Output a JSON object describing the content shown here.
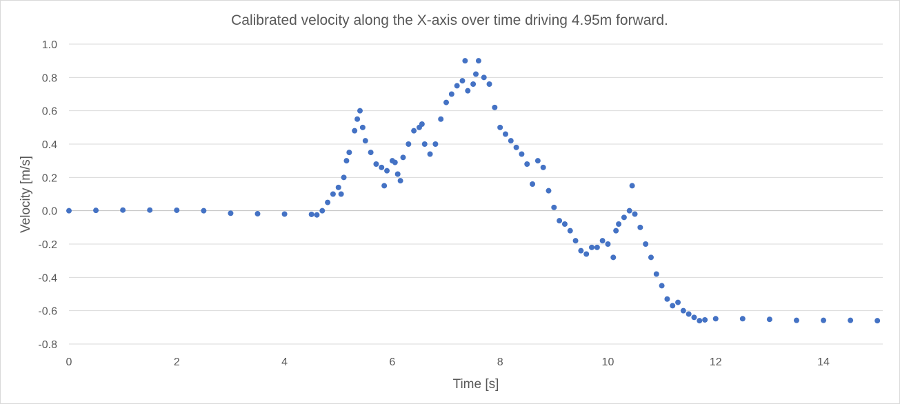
{
  "chart_data": {
    "type": "scatter",
    "title": "Calibrated velocity along the X-axis over time driving 4.95m forward.",
    "xlabel": "Time [s]",
    "ylabel": "Velocity  [m/s]",
    "xlim": [
      0,
      15.1
    ],
    "ylim": [
      -0.8,
      1.0
    ],
    "x_ticks": [
      "0",
      "2",
      "4",
      "6",
      "8",
      "10",
      "12",
      "14"
    ],
    "y_ticks": [
      "1.0",
      "0.8",
      "0.6",
      "0.4",
      "0.2",
      "0.0",
      "-0.2",
      "-0.4",
      "-0.6",
      "-0.8"
    ],
    "grid": "horizontal",
    "legend": "none",
    "marker_color": "#4472c4",
    "series": [
      {
        "points": [
          [
            0,
            0.0
          ],
          [
            0.5,
            0.002
          ],
          [
            1.0,
            0.004
          ],
          [
            1.5,
            0.004
          ],
          [
            2.0,
            0.003
          ],
          [
            2.5,
            0.0
          ],
          [
            3.0,
            -0.015
          ],
          [
            3.5,
            -0.018
          ],
          [
            4.0,
            -0.02
          ],
          [
            4.5,
            -0.022
          ],
          [
            4.6,
            -0.025
          ],
          [
            4.7,
            0.0
          ],
          [
            4.8,
            0.05
          ],
          [
            4.9,
            0.1
          ],
          [
            5.0,
            0.14
          ],
          [
            5.05,
            0.1
          ],
          [
            5.1,
            0.2
          ],
          [
            5.15,
            0.3
          ],
          [
            5.2,
            0.35
          ],
          [
            5.3,
            0.48
          ],
          [
            5.35,
            0.55
          ],
          [
            5.4,
            0.6
          ],
          [
            5.45,
            0.5
          ],
          [
            5.5,
            0.42
          ],
          [
            5.6,
            0.35
          ],
          [
            5.7,
            0.28
          ],
          [
            5.8,
            0.26
          ],
          [
            5.85,
            0.15
          ],
          [
            5.9,
            0.24
          ],
          [
            6.0,
            0.3
          ],
          [
            6.05,
            0.29
          ],
          [
            6.1,
            0.22
          ],
          [
            6.15,
            0.18
          ],
          [
            6.2,
            0.32
          ],
          [
            6.3,
            0.4
          ],
          [
            6.4,
            0.48
          ],
          [
            6.5,
            0.5
          ],
          [
            6.55,
            0.52
          ],
          [
            6.6,
            0.4
          ],
          [
            6.7,
            0.34
          ],
          [
            6.8,
            0.4
          ],
          [
            6.9,
            0.55
          ],
          [
            7.0,
            0.65
          ],
          [
            7.1,
            0.7
          ],
          [
            7.2,
            0.75
          ],
          [
            7.3,
            0.78
          ],
          [
            7.35,
            0.9
          ],
          [
            7.4,
            0.72
          ],
          [
            7.5,
            0.76
          ],
          [
            7.55,
            0.82
          ],
          [
            7.6,
            0.9
          ],
          [
            7.7,
            0.8
          ],
          [
            7.8,
            0.76
          ],
          [
            7.9,
            0.62
          ],
          [
            8.0,
            0.5
          ],
          [
            8.1,
            0.46
          ],
          [
            8.2,
            0.42
          ],
          [
            8.3,
            0.38
          ],
          [
            8.4,
            0.34
          ],
          [
            8.5,
            0.28
          ],
          [
            8.6,
            0.16
          ],
          [
            8.7,
            0.3
          ],
          [
            8.8,
            0.26
          ],
          [
            8.9,
            0.12
          ],
          [
            9.0,
            0.02
          ],
          [
            9.1,
            -0.06
          ],
          [
            9.2,
            -0.08
          ],
          [
            9.3,
            -0.12
          ],
          [
            9.4,
            -0.18
          ],
          [
            9.5,
            -0.24
          ],
          [
            9.6,
            -0.26
          ],
          [
            9.7,
            -0.22
          ],
          [
            9.8,
            -0.22
          ],
          [
            9.9,
            -0.18
          ],
          [
            10.0,
            -0.2
          ],
          [
            10.1,
            -0.28
          ],
          [
            10.15,
            -0.12
          ],
          [
            10.2,
            -0.08
          ],
          [
            10.3,
            -0.04
          ],
          [
            10.4,
            0.0
          ],
          [
            10.45,
            0.15
          ],
          [
            10.5,
            -0.02
          ],
          [
            10.6,
            -0.1
          ],
          [
            10.7,
            -0.2
          ],
          [
            10.8,
            -0.28
          ],
          [
            10.9,
            -0.38
          ],
          [
            11.0,
            -0.45
          ],
          [
            11.1,
            -0.53
          ],
          [
            11.2,
            -0.57
          ],
          [
            11.3,
            -0.55
          ],
          [
            11.4,
            -0.6
          ],
          [
            11.5,
            -0.62
          ],
          [
            11.6,
            -0.64
          ],
          [
            11.7,
            -0.66
          ],
          [
            11.8,
            -0.655
          ],
          [
            12.0,
            -0.648
          ],
          [
            12.5,
            -0.648
          ],
          [
            13.0,
            -0.652
          ],
          [
            13.5,
            -0.658
          ],
          [
            14.0,
            -0.658
          ],
          [
            14.5,
            -0.658
          ],
          [
            15.0,
            -0.66
          ]
        ]
      }
    ]
  }
}
